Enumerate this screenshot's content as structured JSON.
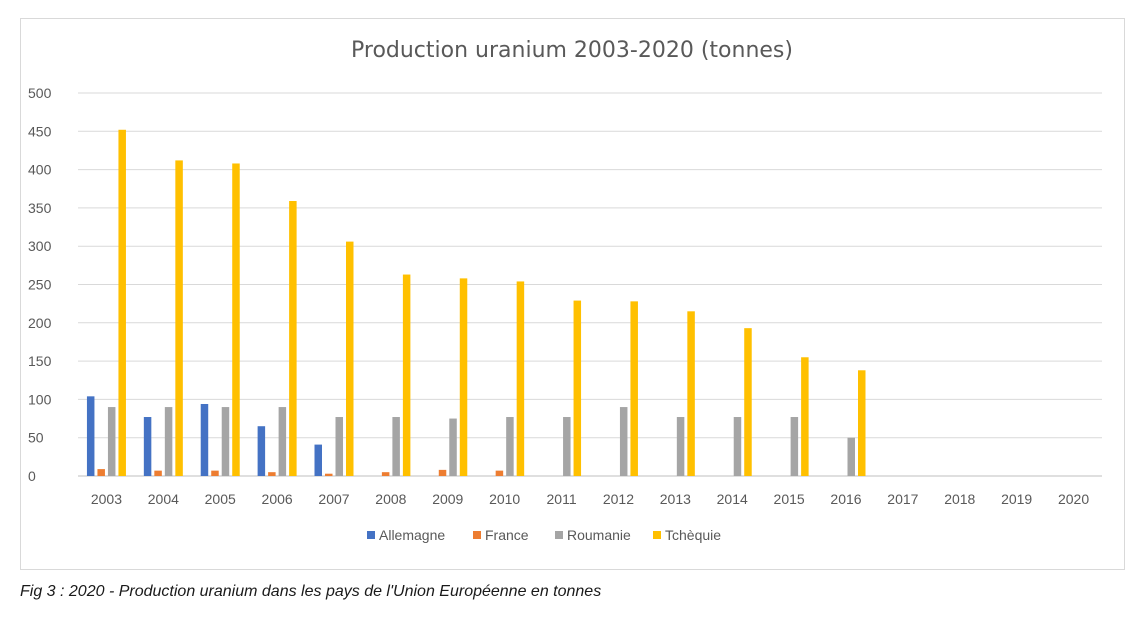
{
  "chart_data": {
    "type": "bar",
    "title": "Production uranium 2003-2020 (tonnes)",
    "xlabel": "",
    "ylabel": "",
    "ylim": [
      0,
      500
    ],
    "yticks": [
      "0",
      "50",
      "100",
      "150",
      "200",
      "250",
      "300",
      "350",
      "400",
      "450",
      "500"
    ],
    "grid": true,
    "legend_position": "bottom",
    "categories": [
      "2003",
      "2004",
      "2005",
      "2006",
      "2007",
      "2008",
      "2009",
      "2010",
      "2011",
      "2012",
      "2013",
      "2014",
      "2015",
      "2016",
      "2017",
      "2018",
      "2019",
      "2020"
    ],
    "series": [
      {
        "name": "Allemagne",
        "color": "#4472c4",
        "values": [
          104,
          77,
          94,
          65,
          41,
          0,
          0,
          0,
          0,
          0,
          0,
          0,
          0,
          0,
          0,
          0,
          0,
          0
        ]
      },
      {
        "name": "France",
        "color": "#ed7d31",
        "values": [
          9,
          7,
          7,
          5,
          3,
          5,
          8,
          7,
          0,
          0,
          0,
          0,
          0,
          0,
          0,
          0,
          0,
          0
        ]
      },
      {
        "name": "Roumanie",
        "color": "#a5a5a5",
        "values": [
          90,
          90,
          90,
          90,
          77,
          77,
          75,
          77,
          77,
          90,
          77,
          77,
          77,
          50,
          0,
          0,
          0,
          0
        ]
      },
      {
        "name": "Tchèquie",
        "color": "#ffc000",
        "values": [
          452,
          412,
          408,
          359,
          306,
          263,
          258,
          254,
          229,
          228,
          215,
          193,
          155,
          138,
          0,
          0,
          0,
          0
        ]
      }
    ]
  },
  "caption": "Fig 3 : 2020 - Production uranium dans les pays de l'Union Européenne en tonnes"
}
